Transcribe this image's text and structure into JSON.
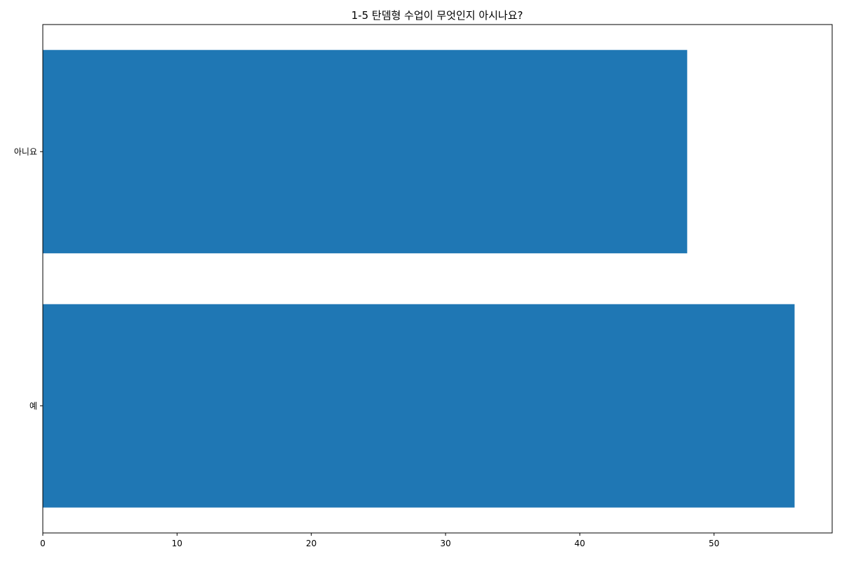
{
  "chart_data": {
    "type": "bar",
    "orientation": "horizontal",
    "title": "1-5 탄뎀형 수업이 무엇인지 아시나요?",
    "xlabel": "",
    "ylabel": "",
    "categories": [
      "예",
      "아니요"
    ],
    "values": [
      56,
      48
    ],
    "xlim": [
      0,
      58.8
    ],
    "xticks": [
      0,
      10,
      20,
      30,
      40,
      50
    ],
    "grid": false,
    "legend": "none",
    "bar_color": "#1f77b4"
  }
}
